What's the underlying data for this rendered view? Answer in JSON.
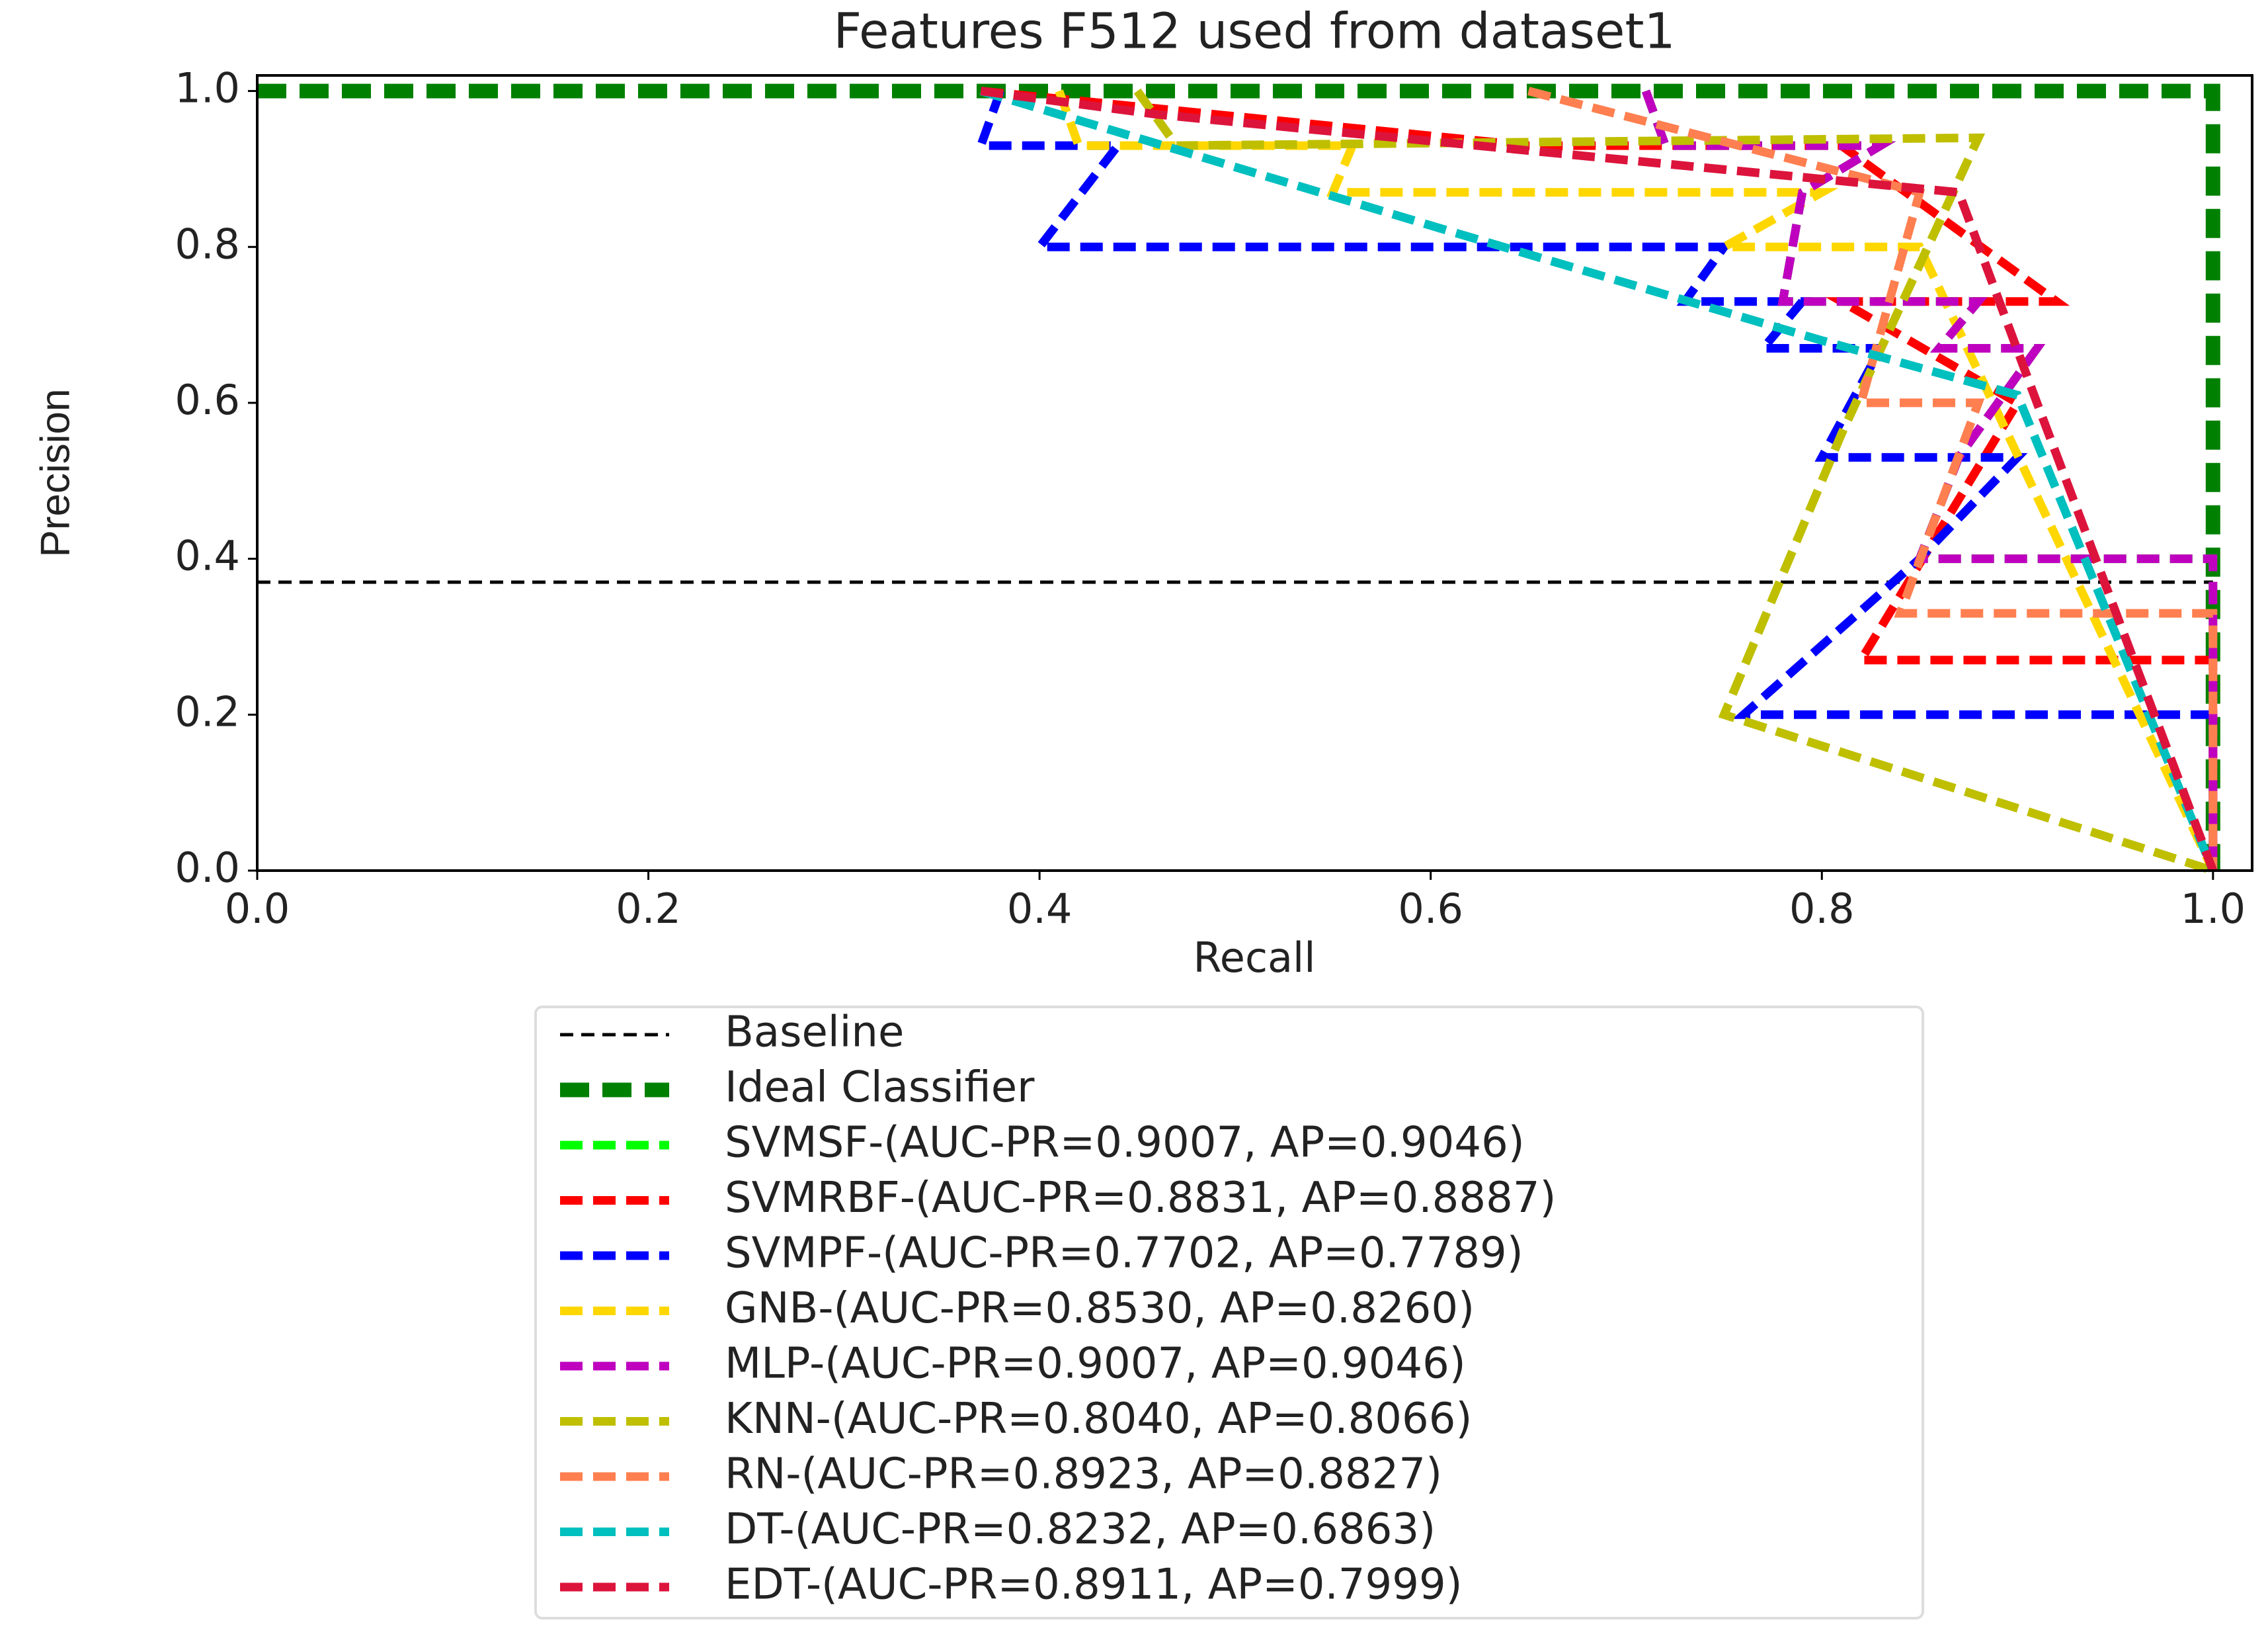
{
  "chart_data": {
    "type": "line",
    "title": "Features F512 used from dataset1",
    "x_label": "Recall",
    "y_label": "Precision",
    "xlim": [
      0,
      1.02
    ],
    "ylim": [
      0,
      1.02
    ],
    "xticks": [
      {
        "value": 0,
        "label": "0.0"
      },
      0.2,
      0.4,
      0.6,
      0.8,
      {
        "value": 1,
        "label": "1.0"
      }
    ],
    "yticks": [
      {
        "value": 0,
        "label": "0.0"
      },
      0.2,
      0.4,
      0.6,
      0.8,
      {
        "value": 1,
        "label": "1.0"
      }
    ],
    "grid": false,
    "legend": "below",
    "series": [
      {
        "name": "Baseline",
        "color": "#000000",
        "x": [
          0,
          1
        ],
        "values": [
          0.37,
          0.37
        ]
      },
      {
        "name": "Ideal Classifier",
        "color": "#008000",
        "x": [
          0,
          1,
          1
        ],
        "values": [
          1,
          1,
          0
        ]
      },
      {
        "name": "SVMSF-(AUC-PR=0.9007, AP=0.9046)",
        "color": "#00ff00",
        "x": [
          0.71,
          0.72,
          0.83,
          0.79,
          0.78,
          0.88,
          0.86,
          0.91,
          0.87,
          0.85,
          1,
          1
        ],
        "values": [
          1,
          0.93,
          0.93,
          0.87,
          0.73,
          0.73,
          0.67,
          0.67,
          0.53,
          0.4,
          0.4,
          0
        ]
      },
      {
        "name": "SVMRBF-(AUC-PR=0.8831, AP=0.8887)",
        "color": "#ff0000",
        "x": [
          0.37,
          0.65,
          0.81,
          0.92,
          0.81,
          0.9,
          0.82,
          1,
          1
        ],
        "values": [
          1,
          0.93,
          0.93,
          0.73,
          0.73,
          0.6,
          0.27,
          0.27,
          0
        ]
      },
      {
        "name": "SVMPF-(AUC-PR=0.7702, AP=0.7789)",
        "color": "#0000ff",
        "x": [
          0.38,
          0.37,
          0.44,
          0.4,
          0.75,
          0.73,
          0.79,
          0.77,
          0.83,
          0.8,
          0.9,
          0.85,
          0.76,
          1,
          1
        ],
        "values": [
          1,
          0.93,
          0.93,
          0.8,
          0.8,
          0.73,
          0.73,
          0.67,
          0.67,
          0.53,
          0.53,
          0.4,
          0.2,
          0.2,
          0
        ]
      },
      {
        "name": "GNB-(AUC-PR=0.8530, AP=0.8260)",
        "color": "#ffd700",
        "x": [
          0.41,
          0.42,
          0.56,
          0.55,
          0.8,
          0.75,
          0.85,
          1
        ],
        "values": [
          1,
          0.93,
          0.93,
          0.87,
          0.87,
          0.8,
          0.8,
          0
        ]
      },
      {
        "name": "MLP-(AUC-PR=0.9007, AP=0.9046)",
        "color": "#bf00bf",
        "x": [
          0.71,
          0.72,
          0.83,
          0.79,
          0.78,
          0.88,
          0.86,
          0.91,
          0.87,
          0.85,
          1,
          1
        ],
        "values": [
          1,
          0.93,
          0.93,
          0.87,
          0.73,
          0.73,
          0.67,
          0.67,
          0.53,
          0.4,
          0.4,
          0
        ]
      },
      {
        "name": "KNN-(AUC-PR=0.8040, AP=0.8066)",
        "color": "#bfbf00",
        "x": [
          0.45,
          0.47,
          0.88,
          0.81,
          0.75,
          1
        ],
        "values": [
          1,
          0.93,
          0.94,
          0.56,
          0.2,
          0
        ]
      },
      {
        "name": "RN-(AUC-PR=0.8923, AP=0.8827)",
        "color": "#ff7f50",
        "x": [
          0.65,
          0.85,
          0.82,
          0.88,
          0.84,
          1,
          1
        ],
        "values": [
          1,
          0.87,
          0.6,
          0.6,
          0.33,
          0.33,
          0
        ]
      },
      {
        "name": "DT-(AUC-PR=0.8232, AP=0.6863)",
        "color": "#00bfbf",
        "x": [
          0.37,
          0.61,
          0.8,
          0.9,
          1
        ],
        "values": [
          1,
          0.82,
          0.68,
          0.61,
          0
        ]
      },
      {
        "name": "EDT-(AUC-PR=0.8911, AP=0.7999)",
        "color": "#dc143c",
        "x": [
          0.37,
          0.46,
          0.87,
          0.91,
          1
        ],
        "values": [
          1,
          0.97,
          0.87,
          0.6,
          0
        ]
      }
    ]
  }
}
